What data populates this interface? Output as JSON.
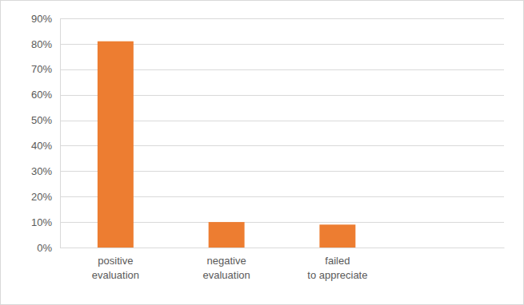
{
  "chart_data": {
    "type": "bar",
    "categories": [
      "positive evaluation",
      "negative evaluation",
      "failed to appreciate",
      null
    ],
    "values": [
      81,
      10,
      9,
      null
    ],
    "color": "#ed7d31",
    "ylim": [
      0,
      90
    ],
    "yticks": [
      {
        "value": 0,
        "label": "0%"
      },
      {
        "value": 10,
        "label": "10%"
      },
      {
        "value": 20,
        "label": "20%"
      },
      {
        "value": 30,
        "label": "30%"
      },
      {
        "value": 40,
        "label": "40%"
      },
      {
        "value": 50,
        "label": "50%"
      },
      {
        "value": 60,
        "label": "60%"
      },
      {
        "value": 70,
        "label": "70%"
      },
      {
        "value": 80,
        "label": "80%"
      },
      {
        "value": 90,
        "label": "90%"
      }
    ],
    "grid": true
  }
}
